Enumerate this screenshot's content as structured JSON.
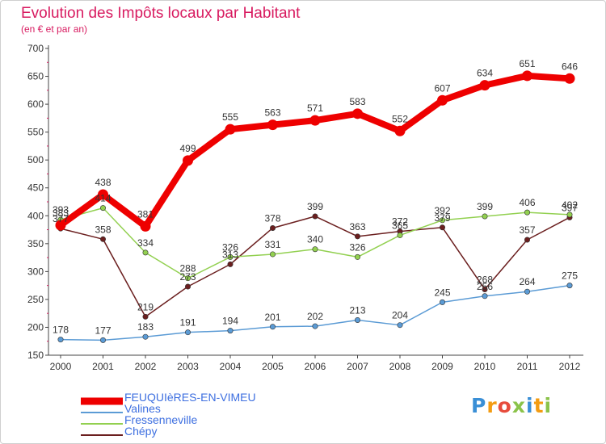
{
  "header": {
    "title": "Evolution des Impôts locaux par Habitant",
    "subtitle": "(en € et par an)"
  },
  "chart_data": {
    "type": "line",
    "title": "Evolution des Impôts locaux par Habitant",
    "subtitle": "(en € et par an)",
    "xlabel": "",
    "ylabel": "",
    "x": [
      "2000",
      "2001",
      "2002",
      "2003",
      "2004",
      "2005",
      "2006",
      "2007",
      "2008",
      "2009",
      "2010",
      "2011",
      "2012"
    ],
    "ylim": [
      150,
      700
    ],
    "yticks": [
      150,
      200,
      250,
      300,
      350,
      400,
      450,
      500,
      550,
      600,
      650,
      700
    ],
    "grid": false,
    "legend_position": "bottom-left",
    "series": [
      {
        "name": "FEUQUIèRES-EN-VIMEU",
        "color": "#ee0000",
        "values": [
          383,
          438,
          381,
          499,
          555,
          563,
          571,
          583,
          552,
          607,
          634,
          651,
          646
        ]
      },
      {
        "name": "Valines",
        "color": "#5b9bd5",
        "values": [
          178,
          177,
          183,
          191,
          194,
          201,
          202,
          213,
          204,
          245,
          256,
          264,
          275
        ]
      },
      {
        "name": "Fressenneville",
        "color": "#92d050",
        "values": [
          393,
          414,
          334,
          288,
          326,
          331,
          340,
          326,
          365,
          392,
          399,
          406,
          402
        ]
      },
      {
        "name": "Chépy",
        "color": "#6b1f1f",
        "values": [
          377,
          358,
          219,
          273,
          313,
          378,
          399,
          363,
          372,
          379,
          268,
          357,
          397
        ]
      }
    ]
  },
  "legend": {
    "items": [
      {
        "label": "FEUQUIèRES-EN-VIMEU",
        "color": "#ee0000"
      },
      {
        "label": "Valines",
        "color": "#5b9bd5"
      },
      {
        "label": "Fressenneville",
        "color": "#92d050"
      },
      {
        "label": "Chépy",
        "color": "#6b1f1f"
      }
    ]
  },
  "logo": {
    "text": "Proxiti",
    "letters": [
      "P",
      "r",
      "o",
      "x",
      "i",
      "t",
      "i"
    ],
    "colors": [
      "#3a8fd6",
      "#f39c12",
      "#e74c3c",
      "#8bc34a",
      "#3a8fd6",
      "#f39c12",
      "#8bc34a"
    ]
  }
}
